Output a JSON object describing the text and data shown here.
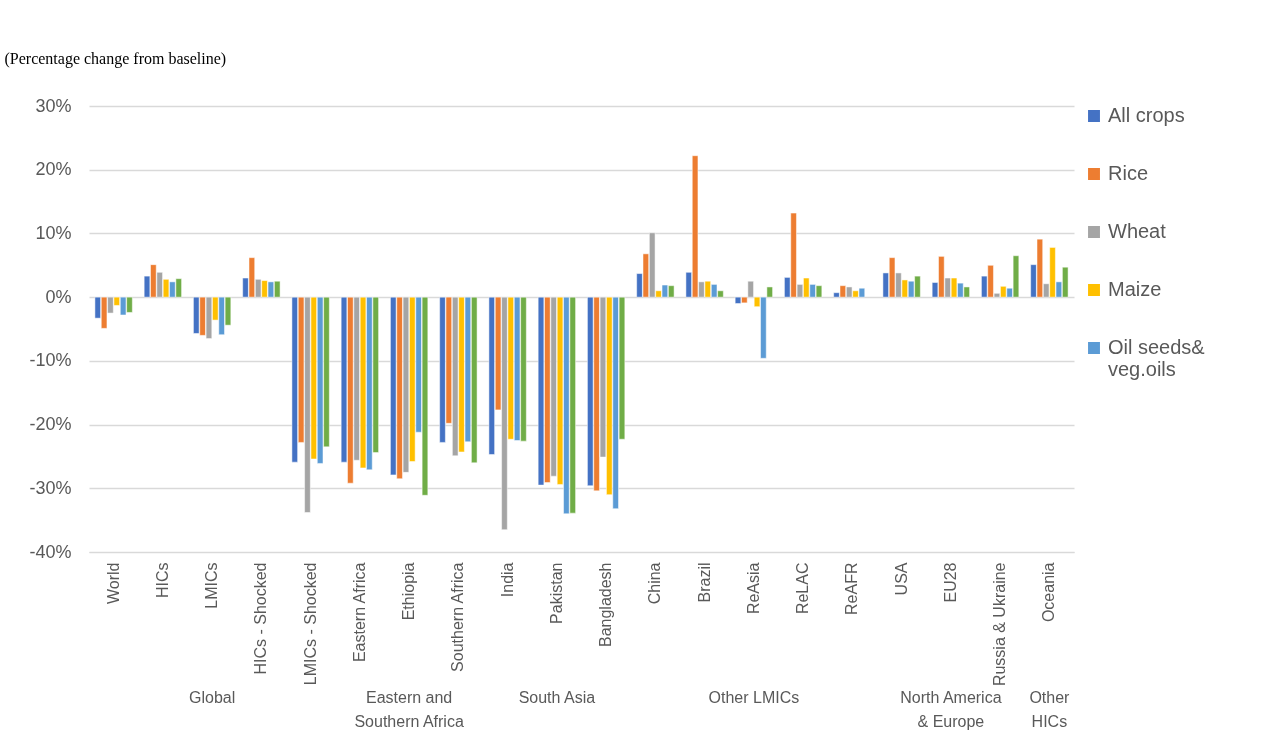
{
  "chart_data": {
    "type": "bar",
    "ylabel": "(Percentage change from baseline)",
    "categories": [
      "World",
      "HICs",
      "LMICs",
      "HICs - Shocked",
      "LMICs - Shocked",
      "Eastern Africa",
      "Ethiopia",
      "Southern Africa",
      "India",
      "Pakistan",
      "Bangladesh",
      "China",
      "Brazil",
      "ReAsia",
      "ReLAC",
      "ReAFR",
      "USA",
      "EU28",
      "Russia & Ukraine",
      "Oceania"
    ],
    "series": [
      {
        "name": "All crops",
        "color": "#4472c4",
        "values": [
          -3.3,
          3.3,
          -5.7,
          3.0,
          -25.9,
          -25.9,
          -27.9,
          -22.8,
          -24.7,
          -29.5,
          -29.6,
          3.7,
          3.9,
          -1.0,
          3.1,
          0.7,
          3.8,
          2.3,
          3.3,
          5.1
        ]
      },
      {
        "name": "Rice",
        "color": "#ed7d31",
        "values": [
          -4.9,
          5.1,
          -6.0,
          6.2,
          -22.8,
          -29.2,
          -28.5,
          -19.8,
          -17.7,
          -29.1,
          -30.4,
          6.8,
          22.2,
          -0.9,
          13.2,
          1.8,
          6.2,
          6.4,
          5.0,
          9.1
        ]
      },
      {
        "name": "Wheat",
        "color": "#a5a5a5",
        "values": [
          -2.5,
          3.9,
          -6.5,
          2.8,
          -33.8,
          -25.6,
          -27.5,
          -24.9,
          -36.5,
          -28.1,
          -25.1,
          10.1,
          2.4,
          2.5,
          2.0,
          1.6,
          3.8,
          3.0,
          0.6,
          2.1
        ]
      },
      {
        "name": "Maize",
        "color": "#ffc000",
        "values": [
          -1.3,
          2.8,
          -3.6,
          2.6,
          -25.4,
          -26.8,
          -25.8,
          -24.3,
          -22.3,
          -29.4,
          -31.0,
          1.0,
          2.5,
          -1.5,
          3.0,
          1.0,
          2.7,
          3.0,
          1.7,
          7.8
        ]
      },
      {
        "name": "Oil seeds& veg.oils",
        "color": "#5b9bd5",
        "values": [
          -2.8,
          2.4,
          -5.9,
          2.4,
          -26.1,
          -27.1,
          -21.2,
          -22.7,
          -22.5,
          -34.0,
          -33.2,
          1.9,
          2.0,
          -9.6,
          2.0,
          1.4,
          2.5,
          2.2,
          1.4,
          2.4
        ]
      },
      {
        "color": "#70ad47",
        "values": [
          -2.4,
          2.9,
          -4.4,
          2.5,
          -23.5,
          -24.4,
          -31.1,
          -26.0,
          -22.6,
          -33.9,
          -22.3,
          1.8,
          1.0,
          1.6,
          1.8,
          null,
          3.3,
          1.6,
          6.5,
          4.7
        ]
      }
    ],
    "ylim": [
      -40,
      30
    ],
    "yticks": [
      {
        "value": -40,
        "label": "-40%"
      },
      {
        "value": -30,
        "label": "-30%"
      },
      {
        "value": -20,
        "label": "-20%"
      },
      {
        "value": -10,
        "label": "-10%"
      },
      {
        "value": 0,
        "label": "0%"
      },
      {
        "value": 10,
        "label": "10%"
      },
      {
        "value": 20,
        "label": "20%"
      },
      {
        "value": 30,
        "label": "30%"
      }
    ],
    "grid": "y",
    "legend": "right",
    "annotations": [
      "Global",
      "Eastern and Southern Africa",
      "South Asia",
      "Other LMICs",
      "North America & Europe",
      "Other HICs"
    ]
  }
}
